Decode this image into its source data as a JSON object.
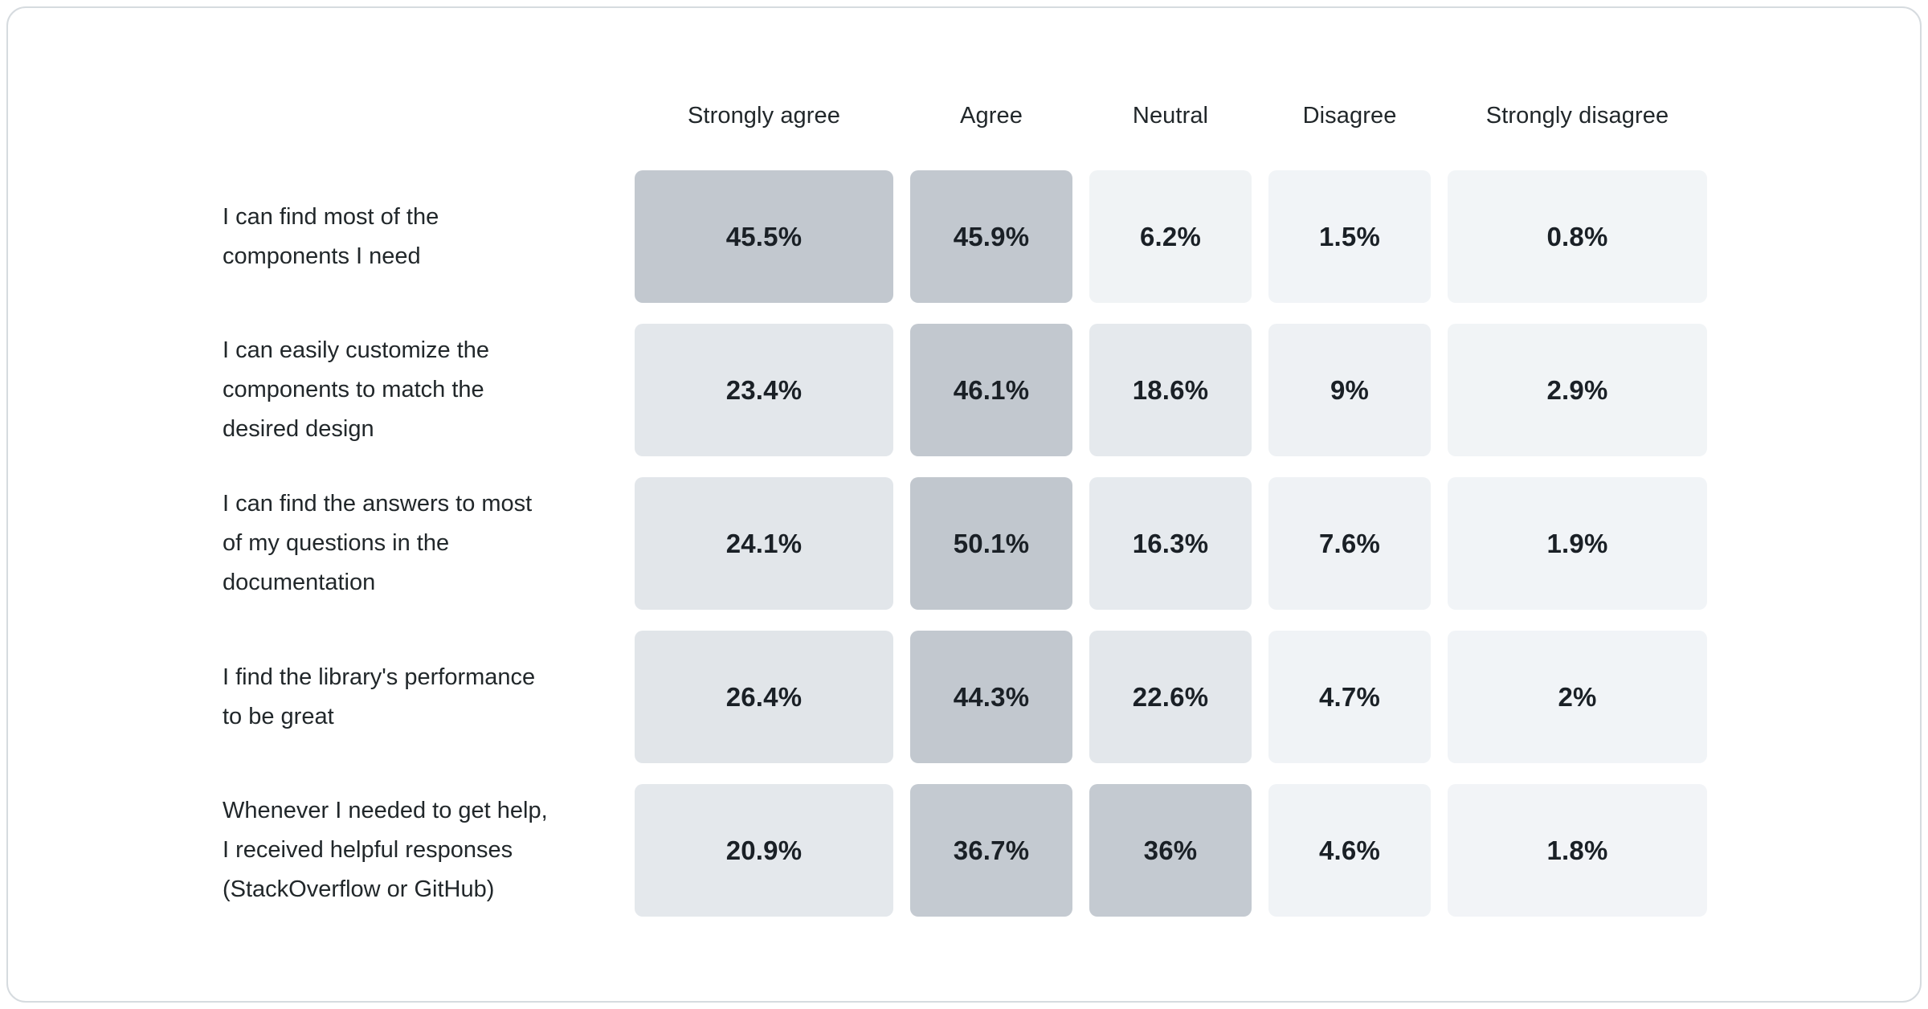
{
  "page": {
    "background": "#ffffff",
    "card_border_color": "#d6dbdf",
    "text_color": "#21272a"
  },
  "chart_data": {
    "type": "heatmap",
    "title": "",
    "legend_position": "none",
    "grid": false,
    "heat_scale": {
      "low_color": "#f2f5f7",
      "high_color": "#c1c7ce",
      "unit": "percent"
    },
    "columns": [
      "Strongly agree",
      "Agree",
      "Neutral",
      "Disagree",
      "Strongly disagree"
    ],
    "rows": [
      {
        "label": "I can find most of the\ncomponents I need",
        "values": [
          45.5,
          45.9,
          6.2,
          1.5,
          0.8
        ],
        "display": [
          "45.5%",
          "45.9%",
          "6.2%",
          "1.5%",
          "0.8%"
        ],
        "colors": [
          "#c2c8cf",
          "#c2c8cf",
          "#f0f3f5",
          "#f1f4f7",
          "#f2f5f7"
        ]
      },
      {
        "label": "I can easily customize the\ncomponents to match the\ndesired design",
        "values": [
          23.4,
          46.1,
          18.6,
          9,
          2.9
        ],
        "display": [
          "23.4%",
          "46.1%",
          "18.6%",
          "9%",
          "2.9%"
        ],
        "colors": [
          "#e3e7eb",
          "#c2c8cf",
          "#e5e9ed",
          "#eef1f4",
          "#f1f4f6"
        ]
      },
      {
        "label": "I can find the answers to most\nof my questions in the\ndocumentation",
        "values": [
          24.1,
          50.1,
          16.3,
          7.6,
          1.9
        ],
        "display": [
          "24.1%",
          "50.1%",
          "16.3%",
          "7.6%",
          "1.9%"
        ],
        "colors": [
          "#e2e6ea",
          "#c1c7ce",
          "#e6eaee",
          "#eff2f5",
          "#f1f4f7"
        ]
      },
      {
        "label": "I find the library's performance\nto be great",
        "values": [
          26.4,
          44.3,
          22.6,
          4.7,
          2
        ],
        "display": [
          "26.4%",
          "44.3%",
          "22.6%",
          "4.7%",
          "2%"
        ],
        "colors": [
          "#e1e5e9",
          "#c2c8cf",
          "#e3e7eb",
          "#f0f3f6",
          "#f1f4f7"
        ]
      },
      {
        "label": "Whenever I needed to get help,\nI received helpful responses\n(StackOverflow or GitHub)",
        "values": [
          20.9,
          36.7,
          36,
          4.6,
          1.8
        ],
        "display": [
          "20.9%",
          "36.7%",
          "36%",
          "4.6%",
          "1.8%"
        ],
        "colors": [
          "#e4e8ec",
          "#c4cad1",
          "#c4cad1",
          "#f0f3f6",
          "#f2f4f7"
        ]
      }
    ]
  }
}
